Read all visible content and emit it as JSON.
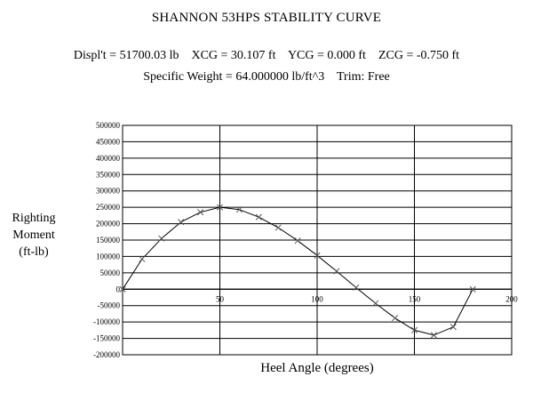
{
  "header": {
    "title": "SHANNON 53HPS STABILITY CURVE",
    "info_line1": "Displ't = 51700.03 lb    XCG = 30.107 ft    YCG = 0.000 ft    ZCG = -0.750 ft",
    "info_line2": "Specific Weight = 64.000000 lb/ft^3    Trim: Free"
  },
  "chart_data": {
    "type": "line",
    "title": "SHANNON 53HPS STABILITY CURVE",
    "xlabel": "Heel Angle (degrees)",
    "ylabel_lines": [
      "Righting",
      "Moment",
      "(ft-lb)"
    ],
    "xlim": [
      0,
      200
    ],
    "ylim": [
      -200000,
      500000
    ],
    "x_ticks": [
      50,
      100,
      150,
      200
    ],
    "y_ticks": [
      500000,
      450000,
      400000,
      350000,
      300000,
      250000,
      200000,
      150000,
      100000,
      50000,
      0,
      -50000,
      -100000,
      -150000,
      -200000
    ],
    "grid": true,
    "colors": {
      "line": "#000000",
      "marker": "#555555",
      "grid": "#000000"
    },
    "series": [
      {
        "marker": "x",
        "x": [
          0,
          10,
          20,
          30,
          40,
          50,
          60,
          70,
          80,
          90,
          100,
          110,
          120,
          130,
          140,
          150,
          160,
          170,
          180
        ],
        "y": [
          0,
          92000,
          155000,
          205000,
          235000,
          250000,
          243000,
          220000,
          188000,
          148000,
          103000,
          55000,
          5000,
          -43000,
          -88000,
          -125000,
          -140000,
          -115000,
          0
        ]
      }
    ]
  }
}
